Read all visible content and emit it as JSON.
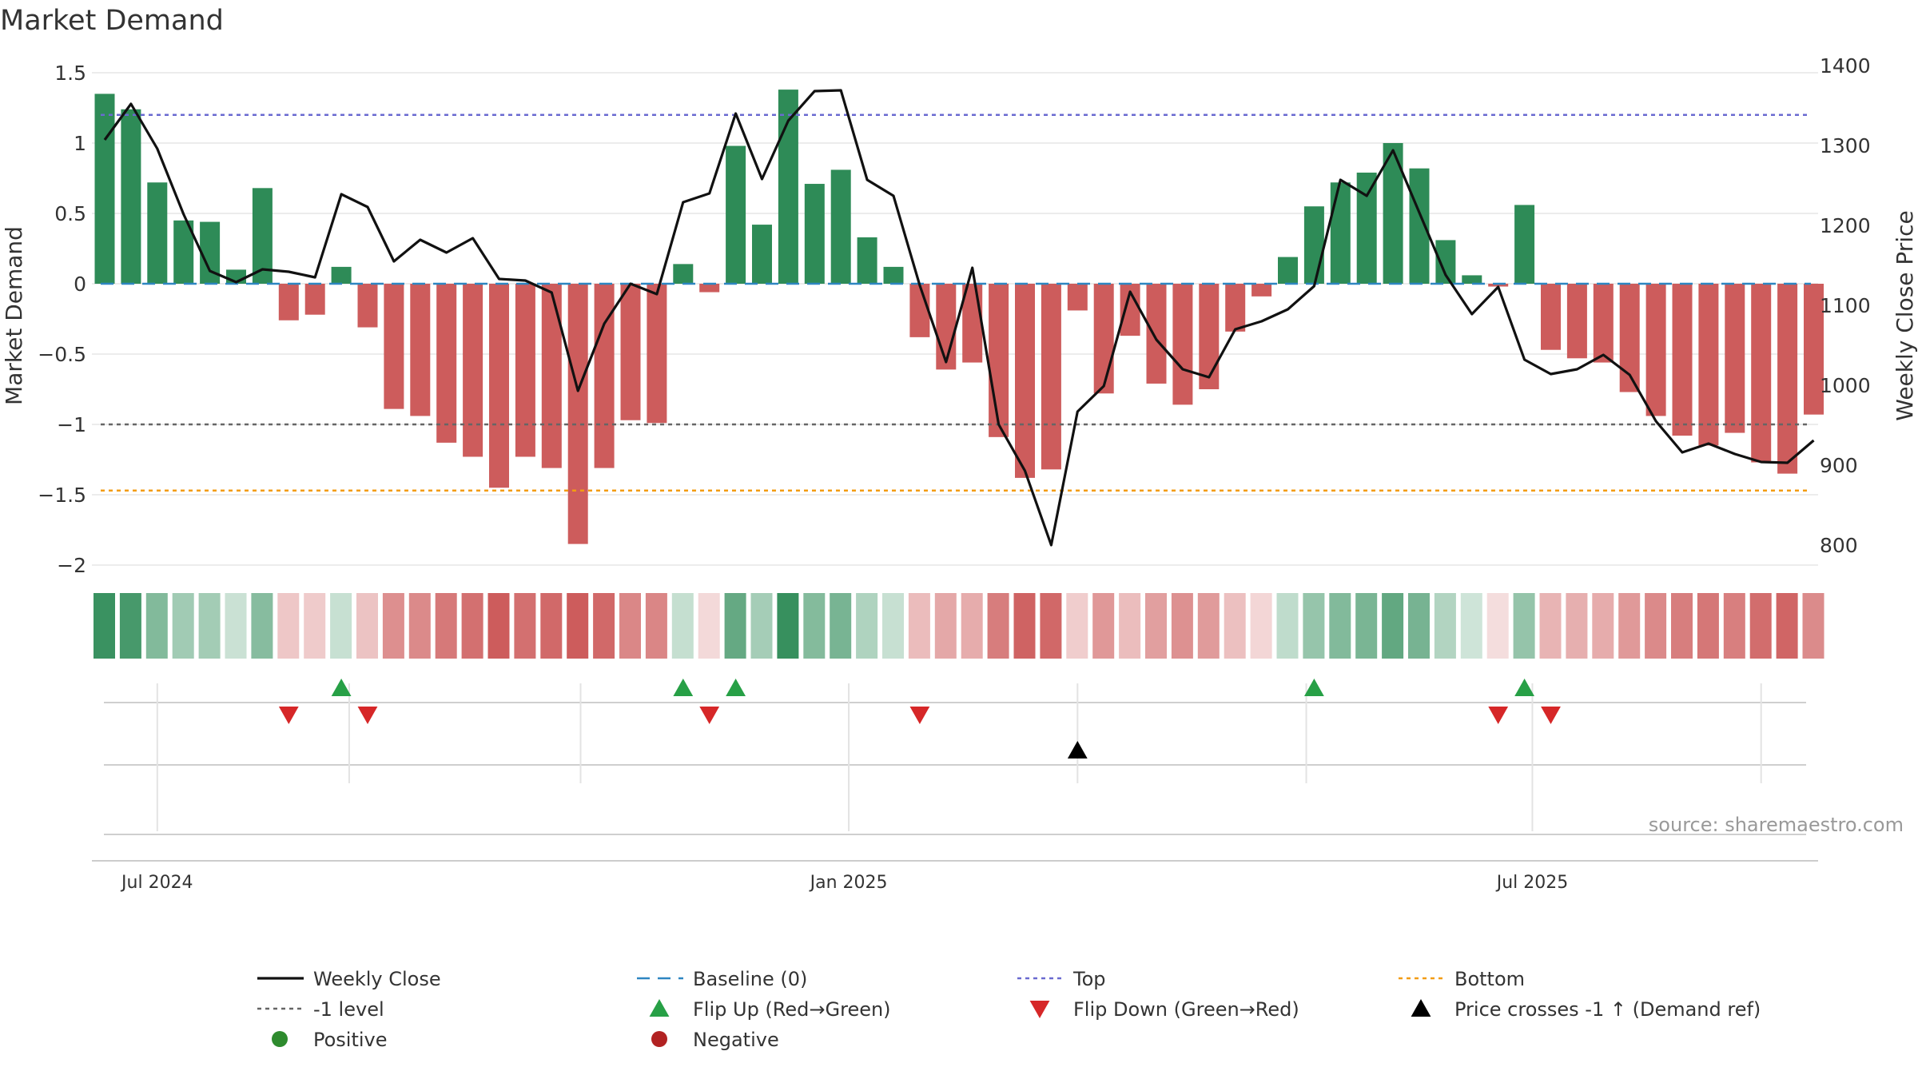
{
  "chart_data": {
    "type": "bar",
    "title": "Market Demand",
    "ylabel_left": "Market Demand",
    "ylabel_right": "Weekly Close Price",
    "ylim_left": [
      -2.2,
      1.5
    ],
    "ylim_right": [
      760,
      1400
    ],
    "yticks_left": [
      1.5,
      1,
      0.5,
      0,
      -0.5,
      -1,
      -1.5,
      -2
    ],
    "ytick_labels_left": [
      "1.5",
      "1",
      "0.5",
      "0",
      "−0.5",
      "−1",
      "−1.5",
      "−2"
    ],
    "yticks_right": [
      1400,
      1300,
      1200,
      1100,
      1000,
      900,
      800
    ],
    "x_ticks": [
      {
        "index": 2,
        "label": "Jul 2024"
      },
      {
        "index": 28.3,
        "label": "Jan 2025"
      },
      {
        "index": 54.3,
        "label": "Jul 2025"
      }
    ],
    "reference_lines": [
      {
        "name": "Top",
        "value": 1.2,
        "color": "#6a6ad0",
        "dash": "dotted"
      },
      {
        "name": "Baseline (0)",
        "value": 0,
        "color": "#2e86c1",
        "dash": "dashed"
      },
      {
        "name": "-1 level",
        "value": -1,
        "color": "#666666",
        "dash": "dotted"
      },
      {
        "name": "Bottom",
        "value": -1.47,
        "color": "#f39c12",
        "dash": "dotted"
      }
    ],
    "series": [
      {
        "name": "Market Demand",
        "type": "bar",
        "values": [
          1.35,
          1.24,
          0.72,
          0.45,
          0.44,
          0.1,
          0.68,
          -0.26,
          -0.22,
          0.12,
          -0.31,
          -0.89,
          -0.94,
          -1.13,
          -1.23,
          -1.45,
          -1.23,
          -1.31,
          -1.85,
          -1.31,
          -0.97,
          -0.99,
          0.14,
          -0.06,
          0.98,
          0.42,
          1.38,
          0.71,
          0.81,
          0.33,
          0.12,
          -0.38,
          -0.61,
          -0.56,
          -1.09,
          -1.38,
          -1.32,
          -0.19,
          -0.78,
          -0.37,
          -0.71,
          -0.86,
          -0.75,
          -0.34,
          -0.09,
          0.19,
          0.55,
          0.72,
          0.79,
          1.0,
          0.82,
          0.31,
          0.06,
          -0.02,
          0.56,
          -0.47,
          -0.53,
          -0.56,
          -0.77,
          -0.94,
          -1.08,
          -1.15,
          -1.06,
          -1.27,
          -1.35,
          -0.93
        ]
      },
      {
        "name": "Weekly Close",
        "type": "line",
        "values": [
          1307,
          1352,
          1296,
          1214,
          1143,
          1129,
          1145,
          1142,
          1135,
          1239,
          1223,
          1155,
          1182,
          1166,
          1184,
          1133,
          1131,
          1116,
          993,
          1077,
          1127,
          1114,
          1229,
          1240,
          1340,
          1258,
          1331,
          1368,
          1369,
          1257,
          1237,
          1125,
          1029,
          1147,
          951,
          893,
          800,
          967,
          999,
          1117,
          1057,
          1020,
          1010,
          1070,
          1080,
          1095,
          1124,
          1257,
          1237,
          1294,
          1216,
          1138,
          1089,
          1123,
          1032,
          1014,
          1020,
          1038,
          1013,
          955,
          916,
          927,
          914,
          904,
          903,
          931
        ]
      }
    ],
    "heat_strip": {
      "label": "Demand intensity strip (same values as bars)"
    },
    "flip_up_indices": [
      9,
      22,
      24,
      46,
      54
    ],
    "flip_down_indices": [
      7,
      10,
      23,
      31,
      53,
      55
    ],
    "price_cross_indices": [
      37
    ],
    "source": "source: sharemaestro.com",
    "colors": {
      "positive_bar": "#2e8b57",
      "negative_bar": "#cd5c5c",
      "line": "#111111",
      "flip_up": "#27a046",
      "flip_down": "#d62728",
      "price_cross": "#000000",
      "legend_positive": "#2e8b2e",
      "legend_negative": "#b22222",
      "grid": "#e6e6e6",
      "axis": "#cccccc"
    },
    "legend": [
      {
        "label": "Weekly Close",
        "marker": "solid-line"
      },
      {
        "label": "Baseline (0)",
        "marker": "dashed-line"
      },
      {
        "label": "Top",
        "marker": "dotted-line-blue"
      },
      {
        "label": "Bottom",
        "marker": "dotted-line-orange"
      },
      {
        "label": "-1 level",
        "marker": "dotted-line-gray"
      },
      {
        "label": "Flip Up (Red→Green)",
        "marker": "triangle-up-green"
      },
      {
        "label": "Flip Down (Green→Red)",
        "marker": "triangle-down-red"
      },
      {
        "label": "Price crosses -1 ↑ (Demand ref)",
        "marker": "triangle-up-black"
      },
      {
        "label": "Positive",
        "marker": "dot-green"
      },
      {
        "label": "Negative",
        "marker": "dot-red"
      }
    ]
  }
}
